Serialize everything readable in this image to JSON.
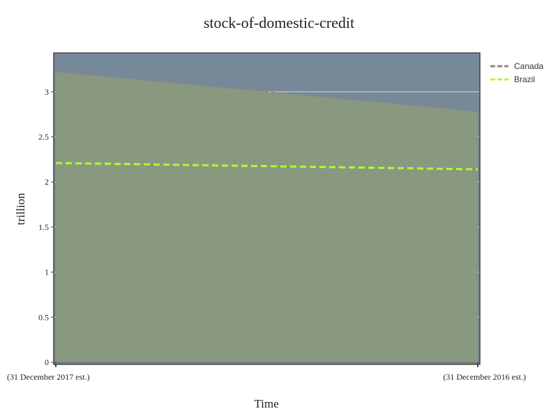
{
  "colors": {
    "plot_background": "#778899",
    "area_fill": "#8a9a7e",
    "grid": "#cfd6dc",
    "axis": "#444444"
  },
  "chart_data": {
    "type": "area",
    "title": "stock-of-domestic-credit",
    "xlabel": "Time",
    "ylabel": "trillion",
    "categories": [
      "(31 December 2017 est.)",
      "(31 December 2016 est.)"
    ],
    "ylim": [
      0,
      3.4
    ],
    "yticks": [
      0,
      0.5,
      1,
      1.5,
      2,
      2.5,
      3
    ],
    "ytick_labels": [
      "0",
      "0.5",
      "1",
      "1.5",
      "2",
      "2.5",
      "3"
    ],
    "grid": true,
    "legend_position": "top-right",
    "series": [
      {
        "name": "Canada",
        "values": [
          3.22,
          2.78
        ],
        "color": "#8b8b83",
        "line_style": "dashed",
        "fill": true
      },
      {
        "name": "Brazil",
        "values": [
          2.21,
          2.14
        ],
        "color": "#adff2f",
        "line_style": "dashed",
        "fill": false
      }
    ]
  }
}
